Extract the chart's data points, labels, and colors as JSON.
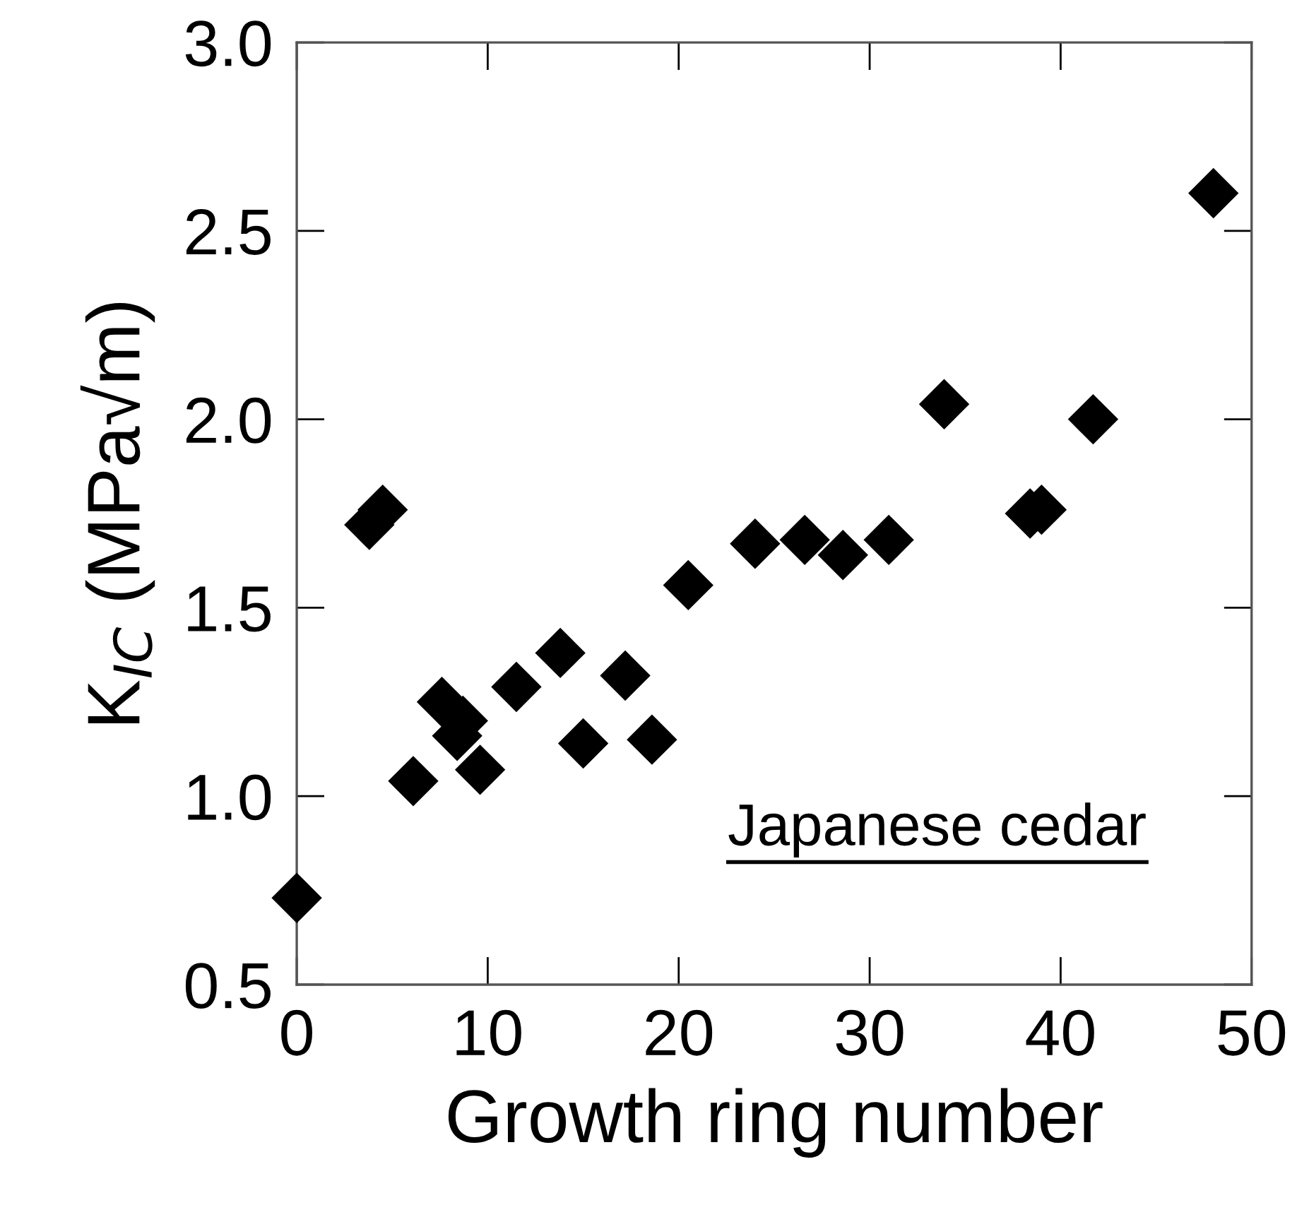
{
  "chart_data": {
    "type": "scatter",
    "xlabel": "Growth ring number",
    "ylabel": "K$_{IC}$ (MPa√m)",
    "annotations": [
      "Japanese cedar"
    ],
    "x": [
      0,
      3.8,
      4.5,
      6.1,
      7.6,
      8.4,
      8.7,
      9.6,
      11.5,
      13.8,
      15.0,
      17.2,
      18.6,
      20.5,
      24.0,
      26.6,
      28.6,
      31.0,
      33.9,
      38.4,
      39.0,
      41.7,
      48.0
    ],
    "series": [
      {
        "color": "#000000",
        "values": [
          0.73,
          1.72,
          1.76,
          1.04,
          1.25,
          1.16,
          1.2,
          1.07,
          1.29,
          1.38,
          1.14,
          1.32,
          1.15,
          1.56,
          1.67,
          1.68,
          1.64,
          1.68,
          2.04,
          1.75,
          1.76,
          2.0,
          2.6
        ]
      }
    ],
    "marker": "diamond",
    "xlim": [
      0,
      50
    ],
    "xticks": [
      0,
      10,
      20,
      30,
      40,
      50
    ],
    "ylim": [
      0.5,
      3.0
    ],
    "yticks": [
      {
        "value": 0.5,
        "label": "0.5"
      },
      {
        "value": 1.0,
        "label": "1.0"
      },
      {
        "value": 1.5,
        "label": "1.5"
      },
      {
        "value": 2.0,
        "label": "2.0"
      },
      {
        "value": 2.5,
        "label": "2.5"
      },
      {
        "value": 3.0,
        "label": "3.0"
      }
    ],
    "grid": false
  }
}
